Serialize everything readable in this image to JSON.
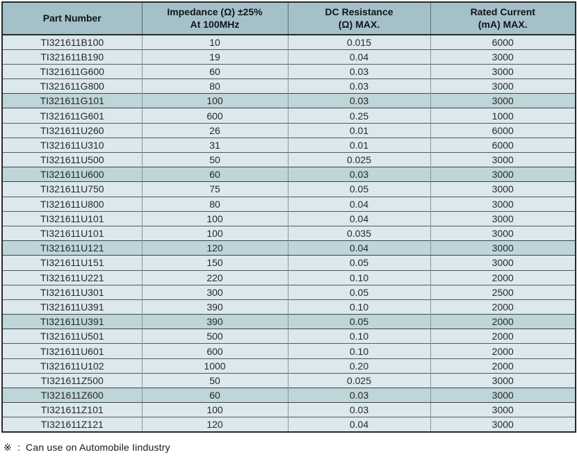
{
  "colors": {
    "header_bg": "#a4c1c9",
    "row_bg": "#dce8eb",
    "row_highlight_bg": "#bed5da",
    "outer_border": "#23292b",
    "row_border": "#4f5a5e",
    "column_border": "#87949a",
    "text": "#24292c"
  },
  "table": {
    "columns": [
      {
        "line1": "Part Number",
        "line2": ""
      },
      {
        "line1": "Impedance (Ω) ±25%",
        "line2": "At 100MHz"
      },
      {
        "line1": "DC Resistance",
        "line2": "(Ω) MAX."
      },
      {
        "line1": "Rated Current",
        "line2": "(mA) MAX."
      }
    ],
    "rows": [
      {
        "part": "TI321611B100",
        "impedance": "10",
        "dc_resistance": "0.015",
        "rated_current": "6000",
        "highlighted": false
      },
      {
        "part": "TI321611B190",
        "impedance": "19",
        "dc_resistance": "0.04",
        "rated_current": "3000",
        "highlighted": false
      },
      {
        "part": "TI321611G600",
        "impedance": "60",
        "dc_resistance": "0.03",
        "rated_current": "3000",
        "highlighted": false
      },
      {
        "part": "TI321611G800",
        "impedance": "80",
        "dc_resistance": "0.03",
        "rated_current": "3000",
        "highlighted": false
      },
      {
        "part": "TI321611G101",
        "impedance": "100",
        "dc_resistance": "0.03",
        "rated_current": "3000",
        "highlighted": true
      },
      {
        "part": "TI321611G601",
        "impedance": "600",
        "dc_resistance": "0.25",
        "rated_current": "1000",
        "highlighted": false
      },
      {
        "part": "TI321611U260",
        "impedance": "26",
        "dc_resistance": "0.01",
        "rated_current": "6000",
        "highlighted": false
      },
      {
        "part": "TI321611U310",
        "impedance": "31",
        "dc_resistance": "0.01",
        "rated_current": "6000",
        "highlighted": false
      },
      {
        "part": "TI321611U500",
        "impedance": "50",
        "dc_resistance": "0.025",
        "rated_current": "3000",
        "highlighted": false
      },
      {
        "part": "TI321611U600",
        "impedance": "60",
        "dc_resistance": "0.03",
        "rated_current": "3000",
        "highlighted": true
      },
      {
        "part": "TI321611U750",
        "impedance": "75",
        "dc_resistance": "0.05",
        "rated_current": "3000",
        "highlighted": false
      },
      {
        "part": "TI321611U800",
        "impedance": "80",
        "dc_resistance": "0.04",
        "rated_current": "3000",
        "highlighted": false
      },
      {
        "part": "TI321611U101",
        "impedance": "100",
        "dc_resistance": "0.04",
        "rated_current": "3000",
        "highlighted": false
      },
      {
        "part": "TI321611U101",
        "impedance": "100",
        "dc_resistance": "0.035",
        "rated_current": "3000",
        "highlighted": false
      },
      {
        "part": "TI321611U121",
        "impedance": "120",
        "dc_resistance": "0.04",
        "rated_current": "3000",
        "highlighted": true
      },
      {
        "part": "TI321611U151",
        "impedance": "150",
        "dc_resistance": "0.05",
        "rated_current": "3000",
        "highlighted": false
      },
      {
        "part": "TI321611U221",
        "impedance": "220",
        "dc_resistance": "0.10",
        "rated_current": "2000",
        "highlighted": false
      },
      {
        "part": "TI321611U301",
        "impedance": "300",
        "dc_resistance": "0.05",
        "rated_current": "2500",
        "highlighted": false
      },
      {
        "part": "TI321611U391",
        "impedance": "390",
        "dc_resistance": "0.10",
        "rated_current": "2000",
        "highlighted": false
      },
      {
        "part": "TI321611U391",
        "impedance": "390",
        "dc_resistance": "0.05",
        "rated_current": "2000",
        "highlighted": true
      },
      {
        "part": "TI321611U501",
        "impedance": "500",
        "dc_resistance": "0.10",
        "rated_current": "2000",
        "highlighted": false
      },
      {
        "part": "TI321611U601",
        "impedance": "600",
        "dc_resistance": "0.10",
        "rated_current": "2000",
        "highlighted": false
      },
      {
        "part": "TI321611U102",
        "impedance": "1000",
        "dc_resistance": "0.20",
        "rated_current": "2000",
        "highlighted": false
      },
      {
        "part": "TI321611Z500",
        "impedance": "50",
        "dc_resistance": "0.025",
        "rated_current": "3000",
        "highlighted": false
      },
      {
        "part": "TI321611Z600",
        "impedance": "60",
        "dc_resistance": "0.03",
        "rated_current": "3000",
        "highlighted": true
      },
      {
        "part": "TI321611Z101",
        "impedance": "100",
        "dc_resistance": "0.03",
        "rated_current": "3000",
        "highlighted": false
      },
      {
        "part": "TI321611Z121",
        "impedance": "120",
        "dc_resistance": "0.04",
        "rated_current": "3000",
        "highlighted": false
      }
    ]
  },
  "footnote": {
    "symbol": "※",
    "separator": ":",
    "text": "Can use on Automobile Iindustry"
  }
}
